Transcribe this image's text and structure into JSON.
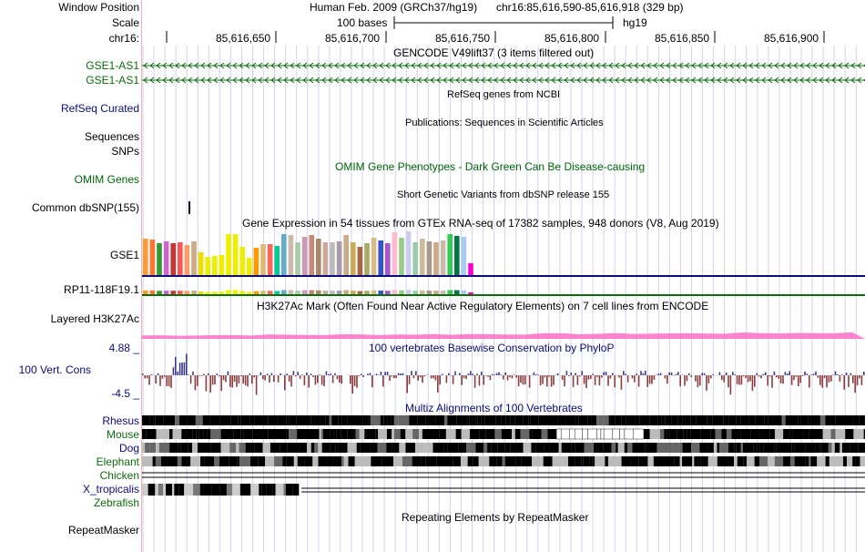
{
  "labels": {
    "window_position": "Window Position",
    "scale": "Scale",
    "chrom": "chr16:",
    "gencode_1": "GSE1-AS1",
    "gencode_2": "GSE1-AS1",
    "refseq": "RefSeq Curated",
    "sequences": "Sequences",
    "snps": "SNPs",
    "omim": "OMIM Genes",
    "dbsnp": "Common dbSNP(155)",
    "gse1": "GSE1",
    "rp11": "RP11-118F19.1",
    "h3k27ac": "Layered H3K27Ac",
    "cons_max": "4.88 _",
    "cons_label": "100 Vert. Cons",
    "cons_min": "-4.5 _",
    "rhesus": "Rhesus",
    "mouse": "Mouse",
    "dog": "Dog",
    "elephant": "Elephant",
    "chicken": "Chicken",
    "xtrop": "X_tropicalis",
    "zebrafish": "Zebrafish",
    "repeatmasker": "RepeatMasker"
  },
  "header": {
    "assembly": "Human Feb. 2009 (GRCh37/hg19)",
    "position": "chr16:85,616,590-85,616,918 (329 bp)",
    "scale_text": "100 bases",
    "scale_db": "hg19"
  },
  "ruler": [
    "85,616,650",
    "85,616,700",
    "85,616,750",
    "85,616,800",
    "85,616,850",
    "85,616,900"
  ],
  "titles": {
    "gencode": "GENCODE V49lift37 (3 items filtered out)",
    "refseq": "RefSeq genes from NCBI",
    "publications": "Publications: Sequences in Scientific Articles",
    "omim": "OMIM Gene Phenotypes - Dark Green Can Be Disease-causing",
    "dbsnp": "Short Genetic Variants from dbSNP release 155",
    "gtex": "Gene Expression in 54 tissues from GTEx RNA-seq of 17382 samples, 948 donors (V8, Aug 2019)",
    "h3k27ac": "H3K27Ac Mark (Often Found Near Active Regulatory Elements) on 7 cell lines from ENCODE",
    "phylop": "100 vertebrates Basewise Conservation by PhyloP",
    "multiz": "Multiz Alignments of 100 Vertebrates",
    "repeatmasker": "Repeating Elements by RepeatMasker"
  },
  "colors": {
    "gencode": "#0d6b0d",
    "refseq": "#0c0c78",
    "omim": "#00640a",
    "phylop_pos": "#3c3c8c",
    "phylop_neg": "#8c3c3c",
    "h3k27ac": "#ff6ec8",
    "grid": "#cfd6ec",
    "gtex": [
      "#ff9933",
      "#ff7733",
      "#339933",
      "#cc66cc",
      "#cc3333",
      "#ff5555",
      "#ff9966",
      "#ccaa88",
      "#eedd00",
      "#eeee00",
      "#eeee00",
      "#eeee00",
      "#eeee00",
      "#eeee00",
      "#eeee00",
      "#eeee00",
      "#ff9900",
      "#ddbb77",
      "#ff6655",
      "#00cc99",
      "#66aacc",
      "#ccbbaa",
      "#aaccaa",
      "#cc99bb",
      "#cc8877",
      "#aa8866",
      "#ccaa99",
      "#bbbbbb",
      "#aa99aa",
      "#ccaa88",
      "#ccaa55",
      "#aa6644",
      "#aaaa66",
      "#ddbb88",
      "#3355cc",
      "#aa55cc",
      "#ffbbcc",
      "#99cc88",
      "#ccccee",
      "#99ccaa",
      "#ccbb99",
      "#aa9988",
      "#ccaa88",
      "#ccbbaa",
      "#33cc55",
      "#007744",
      "#aaccee",
      "#ff00cc"
    ],
    "gtex_heights": [
      0.8,
      0.78,
      0.7,
      0.74,
      0.7,
      0.72,
      0.66,
      0.74,
      0.5,
      0.4,
      0.42,
      0.44,
      0.9,
      0.9,
      0.62,
      0.38,
      0.6,
      0.68,
      0.68,
      0.64,
      0.9,
      0.88,
      0.72,
      0.84,
      0.88,
      0.8,
      0.72,
      0.72,
      0.74,
      0.88,
      0.72,
      0.62,
      0.7,
      0.82,
      0.76,
      0.7,
      0.94,
      0.82,
      0.96,
      0.72,
      0.8,
      0.74,
      0.72,
      0.76,
      0.9,
      0.86,
      0.84,
      0.26
    ]
  }
}
